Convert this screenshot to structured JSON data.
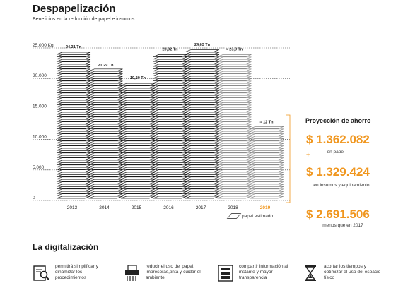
{
  "header": {
    "title": "Despapelización",
    "subtitle": "Beneficios en la reducción de papel e insumos."
  },
  "chart_data": {
    "type": "bar",
    "categories": [
      "2013",
      "2014",
      "2015",
      "2016",
      "2017",
      "2018",
      "2019"
    ],
    "values": [
      24310,
      21290,
      19200,
      23920,
      24630,
      23900,
      12000
    ],
    "data_labels": [
      "24,31 Tn",
      "21,29 Tn",
      "19,20 Tn",
      "23,92 Tn",
      "24,63 Tn",
      "≈ 23,9 Tn",
      "≈ 12 Tn"
    ],
    "bar_kinds": [
      "real",
      "real",
      "real",
      "real",
      "real",
      "estimated",
      "estimated"
    ],
    "y_ticks": [
      0,
      5000,
      10000,
      15000,
      20000,
      25000
    ],
    "y_tick_labels": [
      "0",
      "5.000",
      "10.000",
      "15.000",
      "20.000",
      "25.000 Kg"
    ],
    "ylim": [
      0,
      25000
    ],
    "grid": true,
    "colors": {
      "real": "#1a1a1a",
      "estimated": "#8a8a8a",
      "highlight": "#f0961e"
    },
    "highlight_category": "2019",
    "legend": {
      "label": "papel estimado"
    }
  },
  "projection": {
    "title": "Proyección de ahorro",
    "paper_value": "$ 1.362.082",
    "paper_label": "en papel",
    "plus": "+",
    "supplies_value": "$ 1.329.424",
    "supplies_label": "en insumos y equipamiento",
    "total_value": "$ 2.691.506",
    "total_label": "menos que en 2017"
  },
  "digitalization": {
    "title": "La digitalización",
    "items": [
      {
        "icon": "document-search-icon",
        "text": "permitirá simplificar y dinamizar los procedimientos"
      },
      {
        "icon": "paper-shredder-icon",
        "text": "reducir el uso del papel, impresoras,tinta y cuidar el ambiente"
      },
      {
        "icon": "server-icon",
        "text": "compartir información al instante y mayor transparencia"
      },
      {
        "icon": "hourglass-icon",
        "text": "acortar los tiempos y optimizar el uso del espacio físico"
      }
    ]
  }
}
